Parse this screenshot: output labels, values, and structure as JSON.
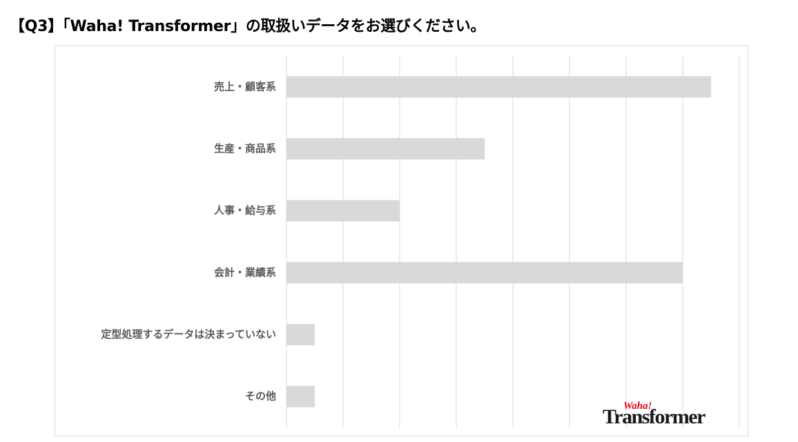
{
  "title": "【Q3】「Waha! Transformer」の取扱いデータをお選びください。",
  "logo": {
    "small": "Waha!",
    "main": "Transformer"
  },
  "colors": {
    "bar": "#d9d9d9",
    "grid": "#d9d9d9",
    "label": "#595959"
  },
  "chart_data": {
    "type": "bar",
    "orientation": "horizontal",
    "title": "",
    "xlabel": "",
    "ylabel": "",
    "categories": [
      "売上・顧客系",
      "生産・商品系",
      "人事・給与系",
      "会計・業績系",
      "定型処理するデータは決まっていない",
      "その他"
    ],
    "values": [
      75,
      35,
      20,
      70,
      5,
      5
    ],
    "xlim": [
      0,
      80
    ],
    "grid_step": 10,
    "grid": true,
    "axis_tick_labels_shown": false,
    "legend": "none"
  }
}
